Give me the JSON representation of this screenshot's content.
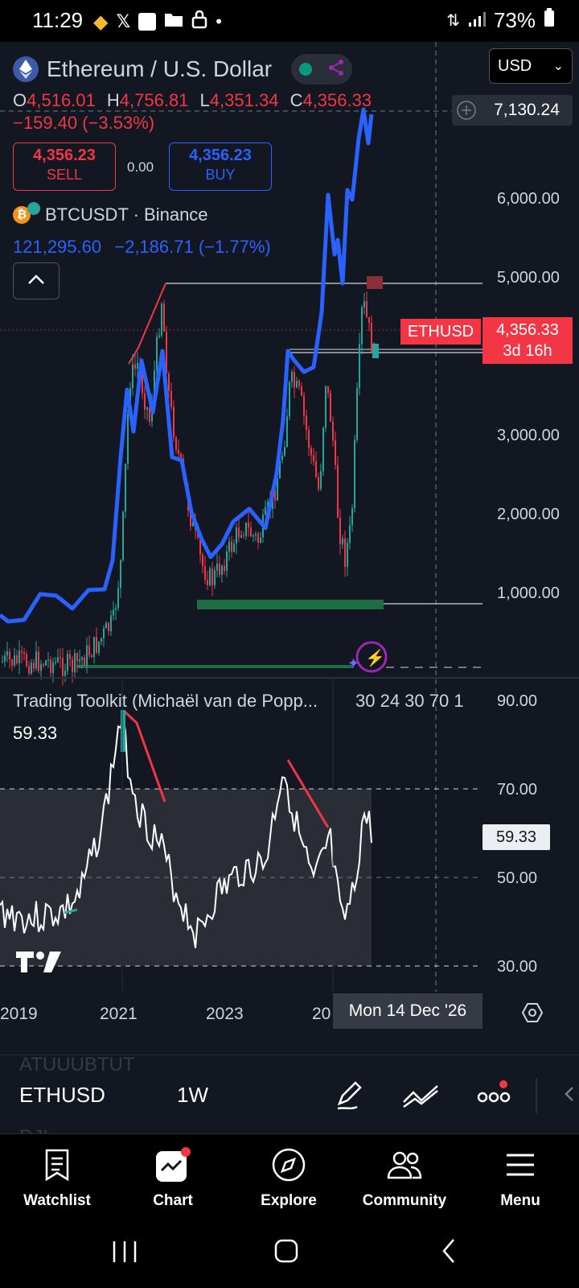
{
  "status_bar": {
    "time": "11:29",
    "battery": "73%"
  },
  "header": {
    "title": "Ethereum / U.S. Dollar",
    "currency": "USD"
  },
  "ohlc": {
    "o_label": "O",
    "o": "4,516.01",
    "h_label": "H",
    "h": "4,756.81",
    "l_label": "L",
    "l": "4,351.34",
    "c_label": "C",
    "c": "4,356.33",
    "change": "−159.40 (−3.53%)"
  },
  "trade": {
    "sell_price": "4,356.23",
    "sell_label": "SELL",
    "spread": "0.00",
    "buy_price": "4,356.23",
    "buy_label": "BUY"
  },
  "compare": {
    "symbol": "BTCUSDT · Binance",
    "price": "121,295.60",
    "change": "−2,186.71 (−1.77%)"
  },
  "price_axis": {
    "top_value": "7,130.24",
    "ticks": [
      "6,000.00",
      "5,000.00",
      "3,000.00",
      "2,000.00",
      "1,000.00"
    ],
    "symbol_tag": "ETHUSD",
    "last_price": "4,356.33",
    "countdown": "3d 16h"
  },
  "indicator": {
    "title": "Trading Toolkit (Michaël van de Popp...",
    "params": "30 24 30 70 1",
    "value": "59.33",
    "ticks": [
      "90.00",
      "70.00",
      "50.00",
      "30.00"
    ],
    "value_tag": "59.33"
  },
  "time_axis": {
    "labels": [
      "2019",
      "2021",
      "2023",
      "20"
    ],
    "crosshair_date": "Mon 14 Dec '26"
  },
  "toolbar": {
    "symbol": "ETHUSD",
    "interval": "1W",
    "ghost_top": "ATUUUBTUT",
    "ghost_bottom": "DJI"
  },
  "nav": {
    "watchlist": "Watchlist",
    "chart": "Chart",
    "explore": "Explore",
    "community": "Community",
    "menu": "Menu"
  },
  "colors": {
    "background": "#131722",
    "up": "#26a69a",
    "down": "#f23645",
    "compare_line": "#2962ff",
    "accent": "#2962ff"
  },
  "chart_data": {
    "type": "candlestick",
    "symbol": "ETHUSD",
    "interval": "1W",
    "x_ticks": [
      "2019",
      "2021",
      "2023"
    ],
    "y_ticks": [
      1000,
      2000,
      3000,
      5000,
      6000
    ],
    "eth_close_approx": [
      {
        "x": "2019",
        "y": 150
      },
      {
        "x": "2020",
        "y": 200
      },
      {
        "x": "2021",
        "y": 1300
      },
      {
        "x": "2021-05",
        "y": 3500
      },
      {
        "x": "2021-11",
        "y": 4700
      },
      {
        "x": "2022-06",
        "y": 1000
      },
      {
        "x": "2023",
        "y": 1300
      },
      {
        "x": "2024-03",
        "y": 3900
      },
      {
        "x": "2024-08",
        "y": 2300
      },
      {
        "x": "2025-04",
        "y": 1500
      },
      {
        "x": "2025-08",
        "y": 4750
      },
      {
        "x": "2025-10",
        "y": 4356
      }
    ],
    "compare_series": "BTCUSDT (normalized overlay)",
    "lines": [
      "horizontal level at recent high",
      "horizontal level near 3,900",
      "horizontal level near 900"
    ]
  }
}
